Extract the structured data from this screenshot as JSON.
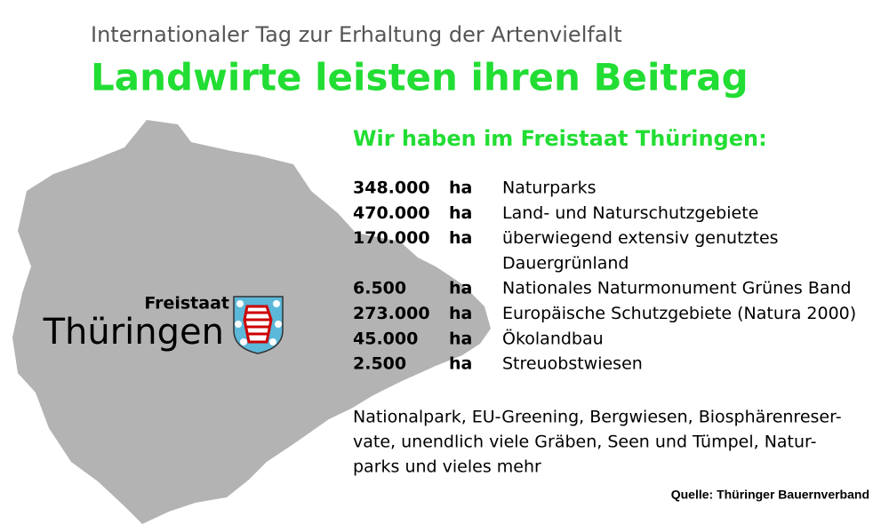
{
  "header": {
    "subtitle": "Internationaler Tag zur Erhaltung der Artenvielfalt",
    "title": "Landwirte leisten ihren Beitrag"
  },
  "map": {
    "label_small": "Freistaat",
    "label_large": "Thüringen"
  },
  "heading": "Wir haben im Freistaat Thüringen:",
  "rows": [
    {
      "amount": "348.000",
      "unit": "ha",
      "label": "Naturparks"
    },
    {
      "amount": "470.000",
      "unit": "ha",
      "label": "Land- und Naturschutzgebiete"
    },
    {
      "amount": "170.000",
      "unit": "ha",
      "label": "überwiegend extensiv genutztes",
      "label_continued": "Dauergrünland"
    },
    {
      "amount": "6.500",
      "unit": "ha",
      "label": "Nationales Naturmonument Grünes Band"
    },
    {
      "amount": "273.000",
      "unit": "ha",
      "label": "Europäische Schutzgebiete (Natura 2000)"
    },
    {
      "amount": "45.000",
      "unit": "ha",
      "label": "Ökolandbau"
    },
    {
      "amount": "2.500",
      "unit": "ha",
      "label": "Streuobstwiesen"
    }
  ],
  "paragraph": [
    "Nationalpark, EU-Greening, Bergwiesen, Biosphärenreser-",
    "vate, unendlich viele Gräben, Seen und Tümpel, Natur-",
    "parks und vieles mehr"
  ],
  "source": "Quelle: Thüringer Bauernverband"
}
